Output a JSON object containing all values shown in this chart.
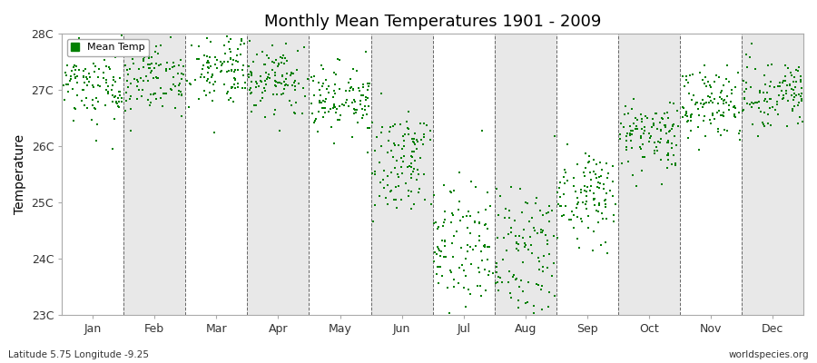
{
  "title": "Monthly Mean Temperatures 1901 - 2009",
  "ylabel": "Temperature",
  "subtitle_left": "Latitude 5.75 Longitude -9.25",
  "subtitle_right": "worldspecies.org",
  "ytick_labels": [
    "23C",
    "24C",
    "25C",
    "26C",
    "27C",
    "28C"
  ],
  "ytick_values": [
    23,
    24,
    25,
    26,
    27,
    28
  ],
  "ylim": [
    23,
    28
  ],
  "month_labels": [
    "Jan",
    "Feb",
    "Mar",
    "Apr",
    "May",
    "Jun",
    "Jul",
    "Aug",
    "Sep",
    "Oct",
    "Nov",
    "Dec"
  ],
  "marker_color": "#008000",
  "bg_color": "#f2f2f2",
  "band_white": "#ffffff",
  "band_gray": "#e8e8e8",
  "legend_label": "Mean Temp",
  "n_years": 109,
  "month_means": [
    27.05,
    27.25,
    27.35,
    27.15,
    26.85,
    25.7,
    24.2,
    24.0,
    25.1,
    26.2,
    26.75,
    26.95
  ],
  "month_stds": [
    0.32,
    0.33,
    0.34,
    0.3,
    0.32,
    0.45,
    0.55,
    0.6,
    0.4,
    0.35,
    0.3,
    0.3
  ],
  "seed": 17
}
